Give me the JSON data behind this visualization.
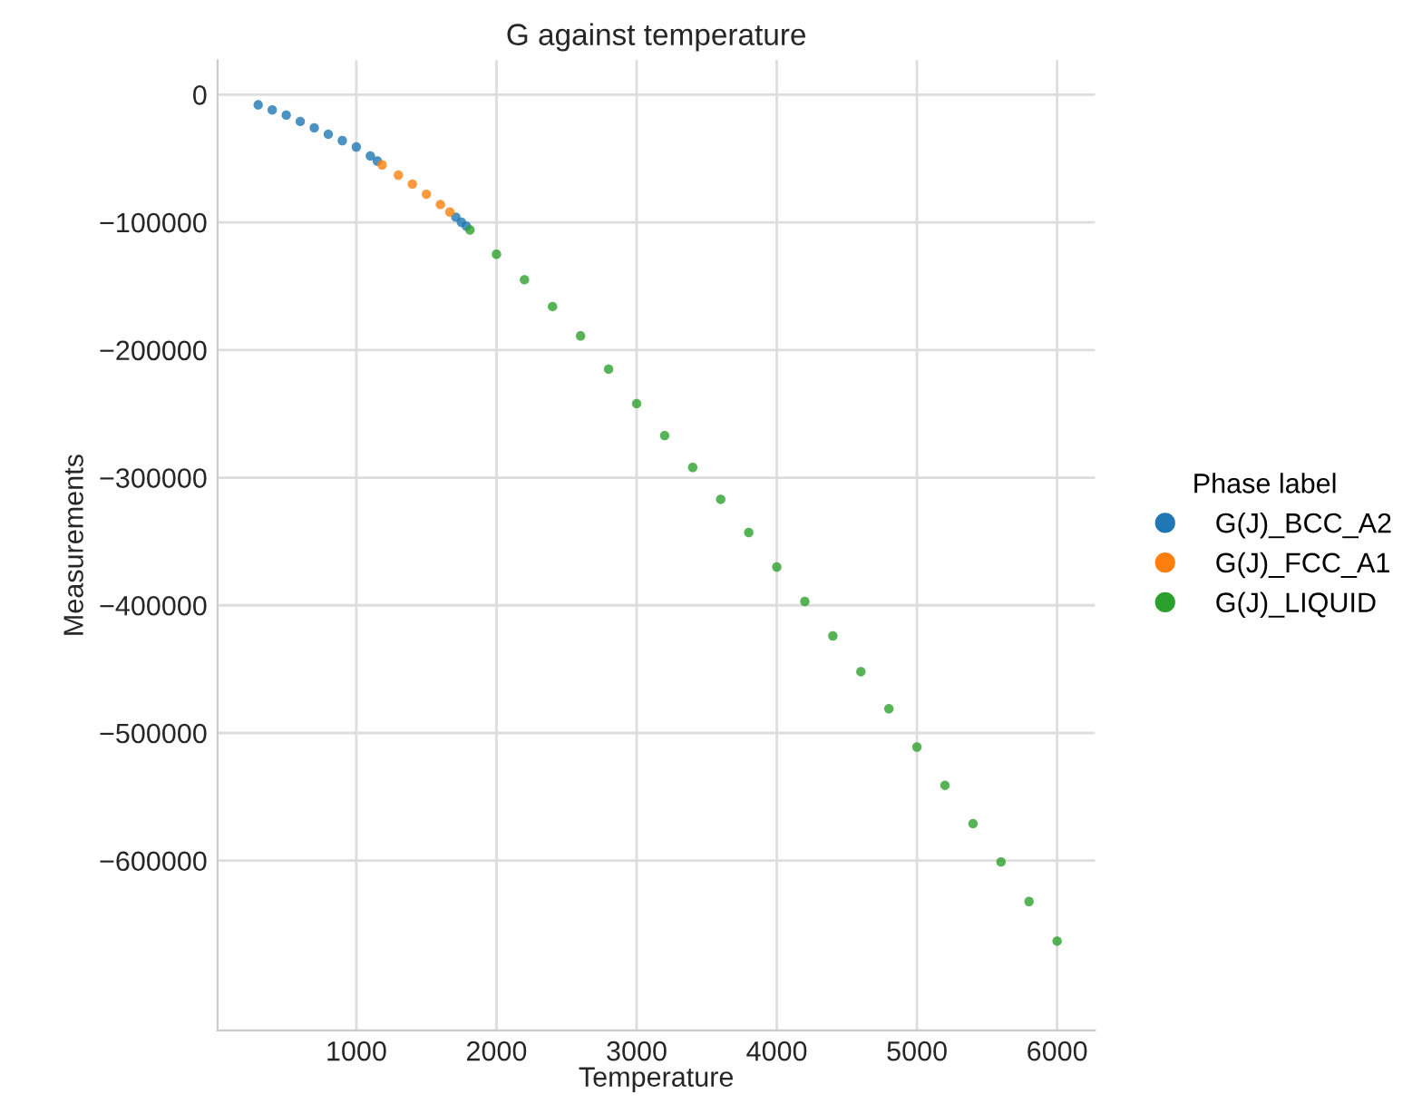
{
  "chart_data": {
    "type": "scatter",
    "title": "G against temperature",
    "xlabel": "Temperature",
    "ylabel": "Measurements",
    "legend_title": "Phase label",
    "legend": "right",
    "grid": true,
    "marker": "circle",
    "xlim": [
      10,
      6270
    ],
    "ylim": [
      -733000,
      27000
    ],
    "xticks": [
      1000,
      2000,
      3000,
      4000,
      5000,
      6000
    ],
    "yticks": [
      0,
      {
        "value": -100000,
        "label": "−100000"
      },
      {
        "value": -200000,
        "label": "−200000"
      },
      {
        "value": -300000,
        "label": "−300000"
      },
      {
        "value": -400000,
        "label": "−400000"
      },
      {
        "value": -500000,
        "label": "−500000"
      },
      {
        "value": -600000,
        "label": "−600000"
      }
    ],
    "series": [
      {
        "name": "G(J)_BCC_A2",
        "color": "#1f77b4",
        "x": [
          300,
          400,
          500,
          600,
          700,
          800,
          900,
          1000,
          1100,
          1150,
          1710,
          1750,
          1785
        ],
        "values": [
          -8000,
          -12000,
          -16000,
          -21000,
          -26000,
          -31000,
          -36000,
          -41000,
          -48000,
          -52000,
          -96000,
          -100000,
          -103000
        ]
      },
      {
        "name": "G(J)_FCC_A1",
        "color": "#ff7f0e",
        "x": [
          1184,
          1300,
          1400,
          1500,
          1600,
          1667
        ],
        "values": [
          -55000,
          -63000,
          -70000,
          -78000,
          -86000,
          -92000
        ]
      },
      {
        "name": "G(J)_LIQUID",
        "color": "#2ca02c",
        "x": [
          1811,
          2000,
          2200,
          2400,
          2600,
          2800,
          3000,
          3200,
          3400,
          3600,
          3800,
          4000,
          4200,
          4400,
          4600,
          4800,
          5000,
          5200,
          5400,
          5600,
          5800,
          6000
        ],
        "values": [
          -106000,
          -125000,
          -145000,
          -166000,
          -189000,
          -215000,
          -242000,
          -267000,
          -292000,
          -317000,
          -343000,
          -370000,
          -397000,
          -424000,
          -452000,
          -481000,
          -511000,
          -541000,
          -571000,
          -601000,
          -632000,
          -663000
        ]
      }
    ]
  }
}
